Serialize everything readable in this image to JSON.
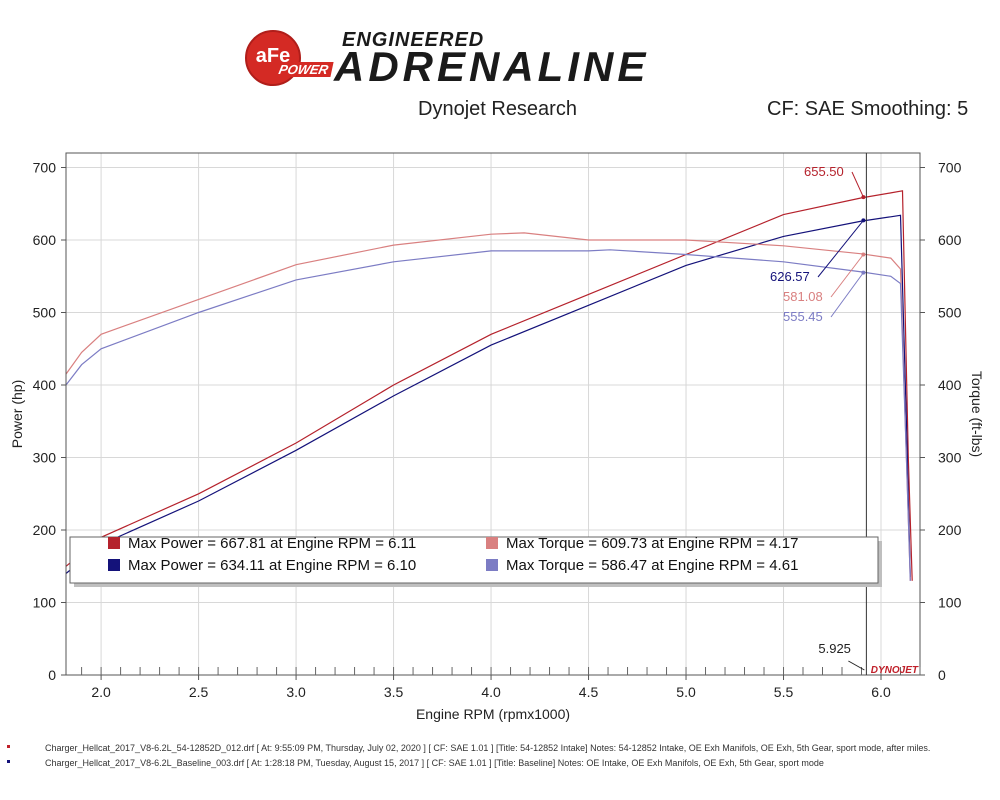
{
  "header": {
    "logo_text": "aFe",
    "logo_sub": "POWER",
    "brand_top": "ENGINEERED",
    "brand_main": "ADRENALINE",
    "title_center": "Dynojet Research",
    "title_right": "CF: SAE Smoothing: 5"
  },
  "colors": {
    "power_run1": "#b5222c",
    "power_run2": "#14127a",
    "torque_run1": "#d98080",
    "torque_run2": "#7c7cc4"
  },
  "chart_data": {
    "type": "line",
    "xlabel": "Engine RPM (rpmx1000)",
    "ylabel": "Power (hp)",
    "y2label": "Torque (ft-lbs)",
    "xlim": [
      1.82,
      6.2
    ],
    "ylim": [
      0,
      720
    ],
    "y2lim": [
      0,
      720
    ],
    "x_ticks": [
      "2.0",
      "2.5",
      "3.0",
      "3.5",
      "4.0",
      "4.5",
      "5.0",
      "5.5",
      "6.0"
    ],
    "y_ticks": [
      "0",
      "100",
      "200",
      "300",
      "400",
      "500",
      "600",
      "700"
    ],
    "y2_ticks": [
      "0",
      "100",
      "200",
      "300",
      "400",
      "500",
      "600",
      "700"
    ],
    "grid": true,
    "cursor_x": 5.925,
    "cursor_label": "5.925",
    "series": [
      {
        "key": "power_run1",
        "axis": "left",
        "x": [
          1.82,
          2.0,
          2.5,
          3.0,
          3.5,
          4.0,
          4.5,
          5.0,
          5.5,
          5.9,
          6.05,
          6.11,
          6.14,
          6.16
        ],
        "y": [
          150,
          190,
          250,
          320,
          400,
          470,
          525,
          580,
          635,
          658,
          665,
          667.81,
          300,
          130
        ]
      },
      {
        "key": "power_run2",
        "axis": "left",
        "x": [
          1.82,
          2.0,
          2.5,
          3.0,
          3.5,
          4.0,
          4.5,
          5.0,
          5.5,
          5.9,
          6.05,
          6.1,
          6.13,
          6.15
        ],
        "y": [
          140,
          180,
          240,
          310,
          385,
          455,
          510,
          565,
          605,
          626,
          632,
          634.11,
          350,
          135
        ]
      },
      {
        "key": "torque_run1",
        "axis": "right",
        "x": [
          1.82,
          1.9,
          2.0,
          2.5,
          3.0,
          3.5,
          4.0,
          4.17,
          4.5,
          5.0,
          5.5,
          5.9,
          6.05,
          6.1,
          6.13,
          6.15
        ],
        "y": [
          415,
          445,
          470,
          518,
          566,
          593,
          608,
          609.73,
          600,
          600,
          592,
          581,
          575,
          560,
          300,
          130
        ]
      },
      {
        "key": "torque_run2",
        "axis": "right",
        "x": [
          1.82,
          1.9,
          2.0,
          2.5,
          3.0,
          3.5,
          4.0,
          4.5,
          4.61,
          5.0,
          5.5,
          5.9,
          6.05,
          6.1,
          6.13,
          6.15
        ],
        "y": [
          400,
          428,
          450,
          500,
          545,
          570,
          585,
          585,
          586.47,
          580,
          570,
          556,
          550,
          540,
          300,
          130
        ]
      }
    ],
    "annotations": [
      {
        "label": "655.50",
        "series": "power_run1",
        "x": 5.925
      },
      {
        "label": "626.57",
        "series": "power_run2",
        "x": 5.925
      },
      {
        "label": "581.08",
        "series": "torque_run1",
        "x": 5.925
      },
      {
        "label": "555.45",
        "series": "torque_run2",
        "x": 5.925
      }
    ],
    "legend": [
      {
        "series": "power_run1",
        "text": "Max Power = 667.81 at Engine RPM = 6.11"
      },
      {
        "series": "power_run2",
        "text": "Max Power = 634.11 at Engine RPM = 6.10"
      },
      {
        "series": "torque_run1",
        "text": "Max Torque = 609.73 at Engine RPM = 4.17"
      },
      {
        "series": "torque_run2",
        "text": "Max Torque = 586.47 at Engine RPM = 4.61"
      }
    ],
    "watermark": "DYNOJET"
  },
  "footer": {
    "line1": "Charger_Hellcat_2017_V8-6.2L_54-12852D_012.drf [ At: 9:55:09 PM, Thursday, July 02, 2020 ] [ CF: SAE 1.01 ] [Title: 54-12852 Intake]  Notes: 54-12852 Intake, OE Exh Manifols, OE Exh, 5th Gear, sport mode, after miles.",
    "line2": "Charger_Hellcat_2017_V8-6.2L_Baseline_003.drf [ At: 1:28:18 PM, Tuesday, August 15, 2017 ] [ CF: SAE 1.01 ] [Title: Baseline]  Notes: OE Intake, OE Exh Manifols, OE Exh, 5th Gear, sport mode"
  }
}
